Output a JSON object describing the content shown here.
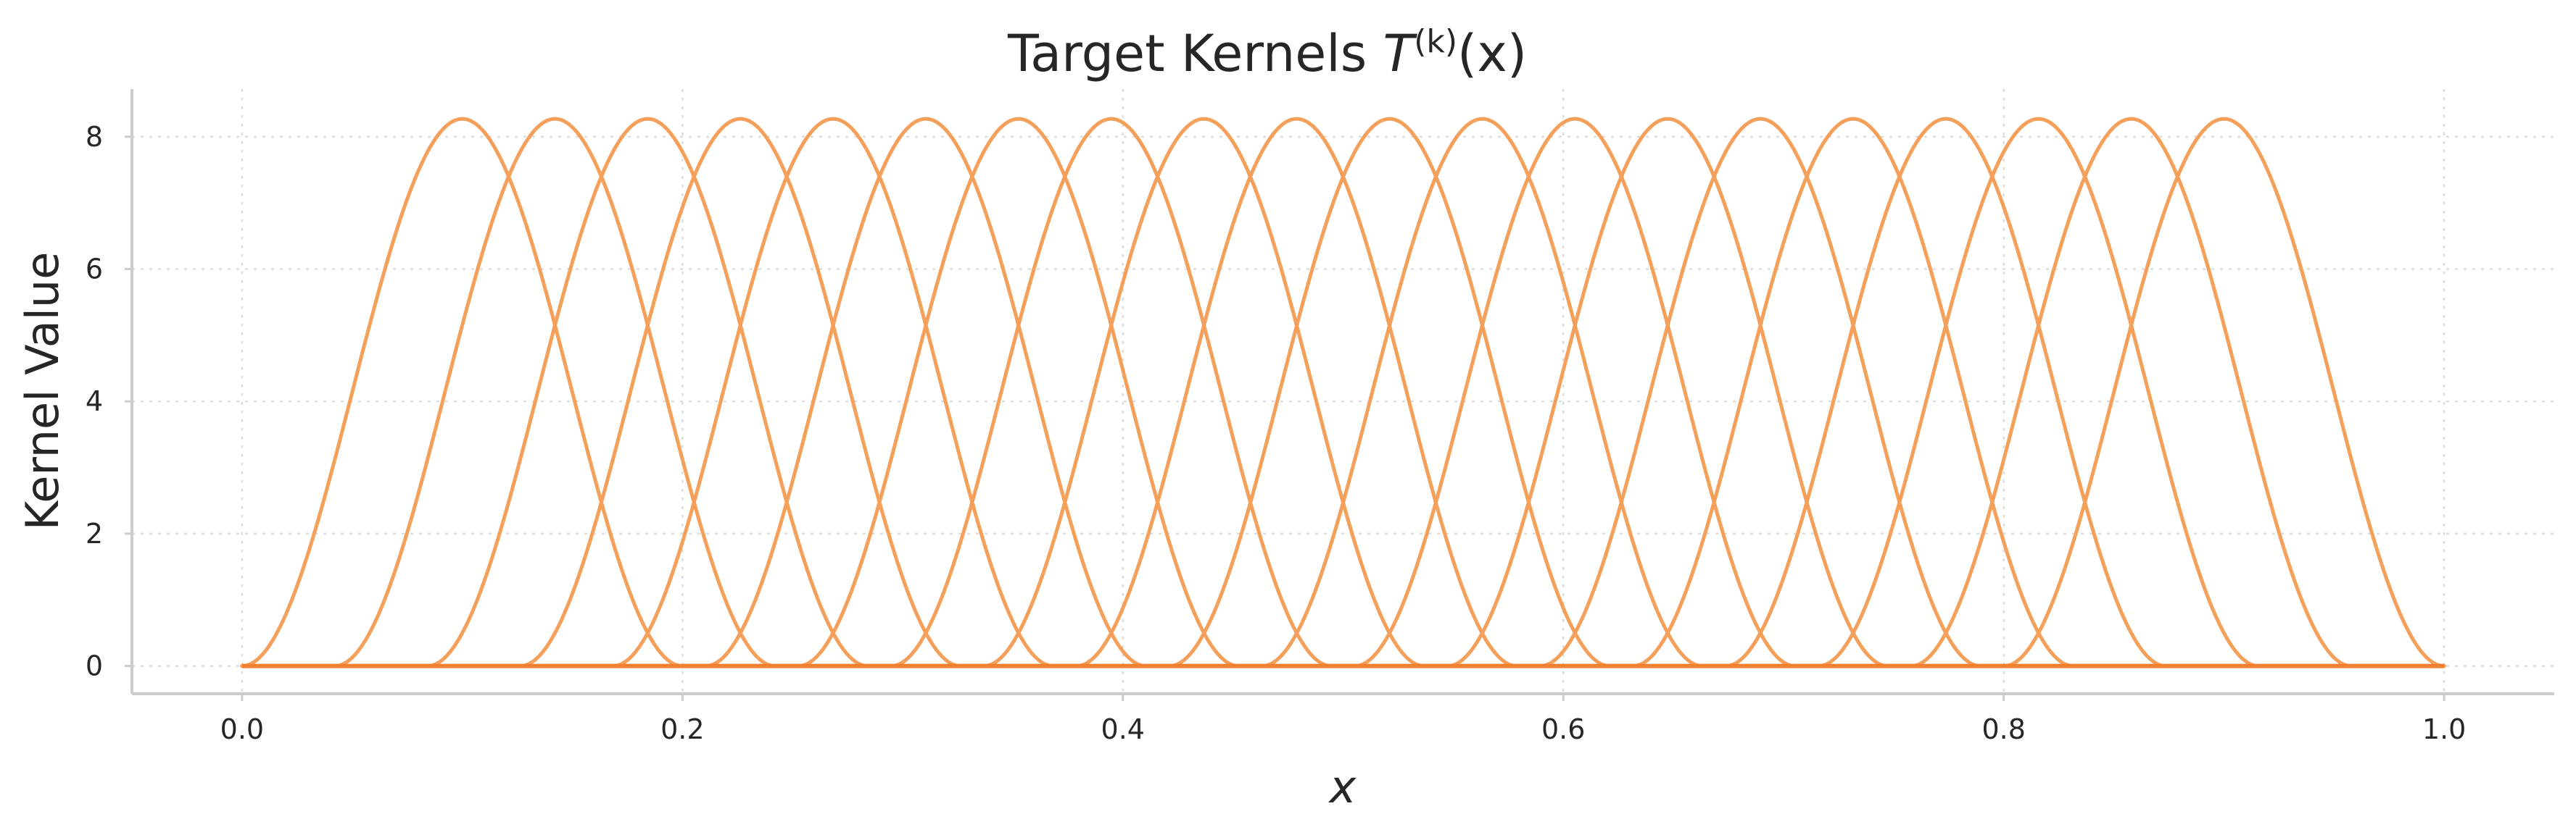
{
  "chart_data": {
    "type": "line",
    "title": {
      "main": "Target Kernels ",
      "symbol": "T",
      "superscript": "(k)",
      "argument": "(x)"
    },
    "xlabel": "x",
    "ylabel": "Kernel Value",
    "xlim": [
      -0.05,
      1.05
    ],
    "ylim": [
      -0.42,
      8.72
    ],
    "x_ticks": [
      0.0,
      0.2,
      0.4,
      0.6,
      0.8,
      1.0
    ],
    "x_tick_labels": [
      "0.0",
      "0.2",
      "0.4",
      "0.6",
      "0.8",
      "1.0"
    ],
    "y_ticks": [
      0,
      2,
      4,
      6,
      8
    ],
    "y_tick_labels": [
      "0",
      "2",
      "4",
      "6",
      "8"
    ],
    "grid": true,
    "legend": "none",
    "line_color": "#f5a05a",
    "baseline_color": "#f08030",
    "kernel_shape": "cos^2 bump, support half-width 0.1, zero elsewhere on [0, 1]",
    "series": [
      {
        "center": 0.1,
        "peak": 8.27,
        "half_width": 0.1
      },
      {
        "center": 0.1421,
        "peak": 8.27,
        "half_width": 0.1
      },
      {
        "center": 0.1842,
        "peak": 8.27,
        "half_width": 0.1
      },
      {
        "center": 0.2263,
        "peak": 8.27,
        "half_width": 0.1
      },
      {
        "center": 0.2684,
        "peak": 8.27,
        "half_width": 0.1
      },
      {
        "center": 0.3105,
        "peak": 8.27,
        "half_width": 0.1
      },
      {
        "center": 0.3526,
        "peak": 8.27,
        "half_width": 0.1
      },
      {
        "center": 0.3947,
        "peak": 8.27,
        "half_width": 0.1
      },
      {
        "center": 0.4368,
        "peak": 8.27,
        "half_width": 0.1
      },
      {
        "center": 0.4789,
        "peak": 8.27,
        "half_width": 0.1
      },
      {
        "center": 0.5211,
        "peak": 8.27,
        "half_width": 0.1
      },
      {
        "center": 0.5632,
        "peak": 8.27,
        "half_width": 0.1
      },
      {
        "center": 0.6053,
        "peak": 8.27,
        "half_width": 0.1
      },
      {
        "center": 0.6474,
        "peak": 8.27,
        "half_width": 0.1
      },
      {
        "center": 0.6895,
        "peak": 8.27,
        "half_width": 0.1
      },
      {
        "center": 0.7316,
        "peak": 8.27,
        "half_width": 0.1
      },
      {
        "center": 0.7737,
        "peak": 8.27,
        "half_width": 0.1
      },
      {
        "center": 0.8158,
        "peak": 8.27,
        "half_width": 0.1
      },
      {
        "center": 0.8579,
        "peak": 8.27,
        "half_width": 0.1
      },
      {
        "center": 0.9,
        "peak": 8.27,
        "half_width": 0.1
      }
    ]
  }
}
